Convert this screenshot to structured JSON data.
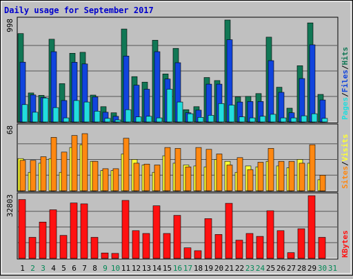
{
  "chart_data": {
    "type": "bar",
    "title": "Daily usage for September 2017",
    "x": [
      "1",
      "2",
      "3",
      "4",
      "5",
      "6",
      "7",
      "8",
      "9",
      "10",
      "11",
      "12",
      "13",
      "14",
      "15",
      "16",
      "17",
      "18",
      "19",
      "20",
      "21",
      "22",
      "23",
      "24",
      "25",
      "26",
      "27",
      "28",
      "29",
      "30",
      "31"
    ],
    "weekend_days": [
      "2",
      "3",
      "9",
      "10",
      "16",
      "17",
      "23",
      "24",
      "30",
      "31"
    ],
    "colors": {
      "hits": "#117755",
      "files": "#1144dd",
      "pages": "#22dddd",
      "visits": "#ffff33",
      "sites": "#ff8811",
      "kbytes": "#ff1111",
      "weekday_label": "#000000",
      "weekend_label": "#008855",
      "title": "#0000cc"
    },
    "panels": [
      {
        "id": "top",
        "ymax": 998,
        "max_label": "998",
        "legend": [
          {
            "text": "Pages",
            "color": "#22dddd"
          },
          {
            "text": "/",
            "color": "#000000"
          },
          {
            "text": "Files",
            "color": "#1144dd"
          },
          {
            "text": "/",
            "color": "#000000"
          },
          {
            "text": "Hits",
            "color": "#117755"
          }
        ],
        "series": [
          {
            "name": "Hits",
            "color": "#117755",
            "values": [
              865,
              284,
              260,
              810,
              375,
              672,
              682,
              263,
              150,
              90,
              910,
              444,
              390,
              800,
              470,
              720,
              120,
              150,
              435,
              405,
              998,
              245,
              250,
              278,
              830,
              340,
              135,
              550,
              970,
              270,
              0
            ]
          },
          {
            "name": "Files",
            "color": "#1144dd",
            "values": [
              585,
              264,
              240,
              688,
              210,
              584,
              568,
              244,
              95,
              55,
              645,
              360,
              320,
              688,
              420,
              580,
              90,
              115,
              370,
              370,
              805,
              195,
              200,
              200,
              600,
              290,
              90,
              425,
              755,
              215,
              0
            ]
          },
          {
            "name": "Pages",
            "color": "#22dddd",
            "values": [
              170,
              95,
              235,
              140,
              40,
              210,
              195,
              105,
              35,
              20,
              120,
              50,
              55,
              40,
              320,
              195,
              80,
              45,
              65,
              180,
              165,
              50,
              40,
              55,
              75,
              40,
              40,
              60,
              80,
              35,
              0
            ]
          }
        ]
      },
      {
        "id": "middle",
        "ymax": 68,
        "max_label": "68",
        "legend": [
          {
            "text": "Sites",
            "color": "#ff8811"
          },
          {
            "text": "/",
            "color": "#000000"
          },
          {
            "text": "Visits",
            "color": "#ffff33"
          }
        ],
        "series": [
          {
            "name": "Visits",
            "color": "#ffff33",
            "values": [
              35,
              20,
              30,
              35,
              20,
              47,
              50,
              32,
              22,
              22,
              40,
              34,
              28,
              20,
              38,
              30,
              28,
              27,
              26,
              34,
              32,
              20,
              27,
              26,
              32,
              27,
              25,
              34,
              30,
              12,
              0
            ]
          },
          {
            "name": "Sites",
            "color": "#ff8811",
            "values": [
              33,
              33,
              37,
              58,
              42,
              60,
              62,
              32,
              24,
              24,
              57,
              30,
              29,
              28,
              47,
              46,
              26,
              47,
              45,
              40,
              28,
              36,
              23,
              31,
              46,
              32,
              32,
              30,
              50,
              17,
              0
            ]
          }
        ]
      },
      {
        "id": "bottom",
        "ymax": 32803,
        "max_label": "32803",
        "legend": [
          {
            "text": "KBytes",
            "color": "#ff1111"
          }
        ],
        "series": [
          {
            "name": "KBytes",
            "color": "#ff1111",
            "values": [
              30800,
              11000,
              19000,
              25400,
              12000,
              29000,
              28500,
              11000,
              2800,
              2600,
              30300,
              14500,
              13000,
              27500,
              13000,
              22500,
              5500,
              4000,
              20800,
              12500,
              28800,
              9500,
              13000,
              11500,
              24900,
              14500,
              3000,
              15500,
              32803,
              11000,
              0
            ]
          }
        ]
      }
    ]
  }
}
